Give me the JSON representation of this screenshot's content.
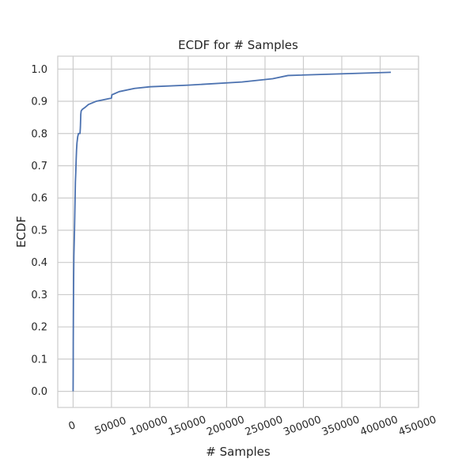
{
  "chart_data": {
    "type": "line",
    "title": "ECDF for # Samples",
    "xlabel": "# Samples",
    "ylabel": "ECDF",
    "xlim": [
      -20000,
      450000
    ],
    "ylim": [
      -0.05,
      1.04
    ],
    "x_ticks": [
      0,
      50000,
      100000,
      150000,
      200000,
      250000,
      300000,
      350000,
      400000,
      450000
    ],
    "x_tick_labels": [
      "0",
      "50000",
      "100000",
      "150000",
      "200000",
      "250000",
      "300000",
      "350000",
      "400000",
      "450000"
    ],
    "y_ticks": [
      0.0,
      0.1,
      0.2,
      0.3,
      0.4,
      0.5,
      0.6,
      0.7,
      0.8,
      0.9,
      1.0
    ],
    "y_tick_labels": [
      "0.0",
      "0.1",
      "0.2",
      "0.3",
      "0.4",
      "0.5",
      "0.6",
      "0.7",
      "0.8",
      "0.9",
      "1.0"
    ],
    "grid": true,
    "x_tick_rotation_deg": -20,
    "color": "#4c72b0",
    "series": [
      {
        "x": [
          0,
          100,
          200,
          400,
          700,
          1000,
          1400,
          1800,
          2200,
          2600,
          3000,
          3500,
          4000,
          4500,
          5000,
          5500,
          6000,
          7000,
          8000,
          9000,
          9500,
          10000,
          10500,
          12000,
          15000,
          20000,
          30000,
          40000,
          50000,
          50500,
          60000,
          80000,
          100000,
          150000,
          220000,
          260000,
          280000,
          414000
        ],
        "y": [
          0.0,
          0.05,
          0.15,
          0.25,
          0.35,
          0.42,
          0.46,
          0.5,
          0.55,
          0.6,
          0.65,
          0.68,
          0.72,
          0.75,
          0.77,
          0.78,
          0.79,
          0.8,
          0.8,
          0.8,
          0.82,
          0.86,
          0.87,
          0.875,
          0.88,
          0.89,
          0.9,
          0.905,
          0.91,
          0.92,
          0.93,
          0.94,
          0.945,
          0.95,
          0.96,
          0.97,
          0.98,
          0.99
        ]
      }
    ]
  }
}
